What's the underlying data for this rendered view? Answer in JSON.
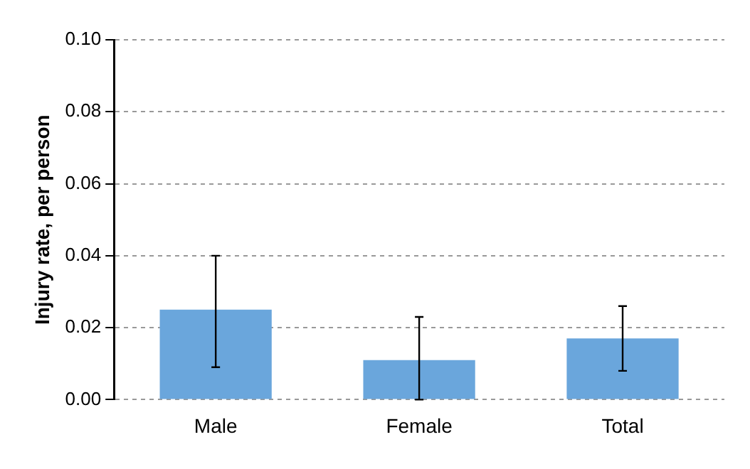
{
  "chart_data": {
    "type": "bar",
    "ylabel": "Injury rate, per person",
    "categories": [
      "Male",
      "Female",
      "Total"
    ],
    "values": [
      0.025,
      0.011,
      0.017
    ],
    "color": "#6aa6dc",
    "errors": [
      [
        0.009,
        0.04
      ],
      [
        0.0,
        0.023
      ],
      [
        0.008,
        0.026
      ]
    ],
    "ylim": [
      0,
      0.1
    ],
    "yticks": [
      {
        "value": 0,
        "label": "0.00"
      },
      {
        "value": 0.02,
        "label": "0.02"
      },
      {
        "value": 0.04,
        "label": "0.04"
      },
      {
        "value": 0.06,
        "label": "0.06"
      },
      {
        "value": 0.08,
        "label": "0.08"
      },
      {
        "value": 0.1,
        "label": "0.10"
      }
    ],
    "grid": "y"
  }
}
